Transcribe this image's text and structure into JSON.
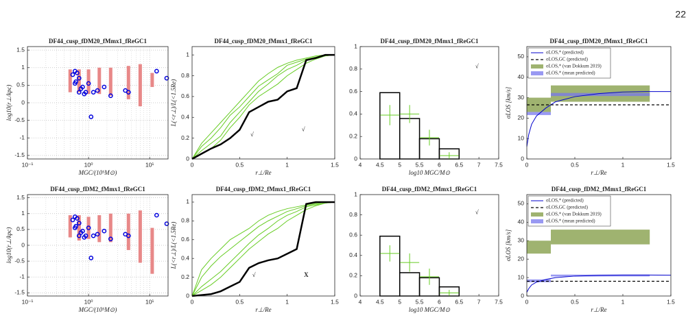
{
  "page_number": "22",
  "chart_data": [
    {
      "type": "scatter",
      "title": "DF44_cusp_fDM20_fMmx1_fReGC1",
      "xlabel": "MGC/(10⁵M⊙)",
      "ylabel": "log10(r⊥/kpc)",
      "xlog": true,
      "grid": true,
      "xlim": [
        0.1,
        20
      ],
      "ylim": [
        -1.6,
        1.6
      ],
      "xticks": [
        {
          "value": 0.1,
          "label": "10⁻¹"
        },
        {
          "value": 1,
          "label": "10⁰"
        },
        {
          "value": 10,
          "label": "10¹"
        }
      ],
      "yticks": [
        -1.5,
        -1,
        -0.5,
        0,
        0.5,
        1,
        1.5
      ],
      "ranges": {
        "color": "#e88888",
        "x": [
          0.5,
          0.7,
          1.0,
          1.5,
          2.3,
          4.5,
          7,
          11
        ],
        "low": [
          0.3,
          0.3,
          0.25,
          0.25,
          0.2,
          0.1,
          -0.1,
          0.45
        ],
        "high": [
          0.95,
          0.95,
          0.95,
          1.0,
          1.0,
          1.05,
          1.1,
          0.85
        ]
      },
      "points": {
        "color": "#0000dd",
        "x": [
          0.55,
          0.6,
          0.65,
          0.6,
          0.62,
          0.7,
          0.7,
          0.75,
          0.8,
          0.85,
          0.9,
          1.0,
          1.1,
          1.2,
          1.4,
          1.8,
          2.3,
          4.0,
          4.5,
          13,
          19
        ],
        "y": [
          0.8,
          0.9,
          0.85,
          0.55,
          0.6,
          0.7,
          0.3,
          0.4,
          0.45,
          0.25,
          0.3,
          0.55,
          -0.4,
          0.3,
          0.35,
          0.45,
          0.2,
          0.35,
          0.3,
          0.9,
          0.7
        ]
      }
    },
    {
      "type": "line",
      "title": "DF44_cusp_fDM20_fMmx1_fReGC1",
      "xlabel": "r⊥/Re",
      "ylabel": "L(<r⊥)/L(<1.5Re)",
      "xlim": [
        0,
        1.5
      ],
      "ylim": [
        0,
        1.08
      ],
      "xticks": [
        0,
        0.5,
        1,
        1.5
      ],
      "yticks": [
        0,
        0.2,
        0.4,
        0.6,
        0.8,
        1
      ],
      "x": [
        0,
        0.1,
        0.2,
        0.3,
        0.4,
        0.5,
        0.6,
        0.7,
        0.8,
        0.9,
        1.0,
        1.1,
        1.2,
        1.3,
        1.4,
        1.5
      ],
      "series": [
        {
          "color": "#66cc22",
          "width": 1,
          "values": [
            0,
            0.12,
            0.2,
            0.3,
            0.42,
            0.5,
            0.6,
            0.7,
            0.76,
            0.82,
            0.9,
            0.93,
            0.96,
            0.98,
            1,
            1
          ]
        },
        {
          "color": "#66cc22",
          "width": 1,
          "values": [
            0,
            0.05,
            0.1,
            0.18,
            0.3,
            0.4,
            0.52,
            0.6,
            0.66,
            0.72,
            0.8,
            0.86,
            0.92,
            0.96,
            0.99,
            1
          ]
        },
        {
          "color": "#66cc22",
          "width": 1,
          "values": [
            0,
            0.08,
            0.15,
            0.22,
            0.35,
            0.45,
            0.55,
            0.65,
            0.72,
            0.8,
            0.86,
            0.9,
            0.95,
            0.97,
            0.99,
            1
          ]
        },
        {
          "color": "#66cc22",
          "width": 1,
          "values": [
            0,
            0.15,
            0.25,
            0.35,
            0.45,
            0.55,
            0.65,
            0.75,
            0.82,
            0.88,
            0.92,
            0.95,
            0.97,
            0.99,
            1,
            1
          ]
        },
        {
          "color": "#000000",
          "width": 2.5,
          "values": [
            0,
            0.05,
            0.1,
            0.14,
            0.2,
            0.28,
            0.45,
            0.5,
            0.55,
            0.57,
            0.65,
            0.68,
            0.95,
            0.97,
            1.0,
            1.0
          ]
        }
      ],
      "annotations": [
        {
          "text": "√",
          "x": 0.63,
          "y": 0.23,
          "color": "#2222cc"
        },
        {
          "text": "√",
          "x": 1.17,
          "y": 0.28,
          "color": "#2222cc"
        }
      ]
    },
    {
      "type": "histogram",
      "title": "DF44_cusp_fDM20_fMmx1_fReGC1",
      "xlabel": "log10 MGC/M⊙",
      "xlim": [
        4,
        7.5
      ],
      "ylim": [
        0,
        1
      ],
      "xticks": [
        4,
        4.5,
        5,
        5.5,
        6,
        6.5,
        7,
        7.5
      ],
      "yticks": [
        0,
        0.2,
        0.4,
        0.6,
        0.8,
        1
      ],
      "bins": [
        4.5,
        5,
        5.5,
        6,
        6.5
      ],
      "counts": [
        0.59,
        0.36,
        0.18,
        0.09
      ],
      "color": "#000000",
      "points": {
        "color": "#66cc22",
        "x": [
          4.75,
          5.25,
          5.75,
          6.25
        ],
        "y": [
          0.39,
          0.4,
          0.19,
          0.03
        ],
        "err": [
          0.09,
          0.08,
          0.07,
          0.03
        ]
      },
      "annotations": [
        {
          "text": "√",
          "x": 6.95,
          "y": 0.82,
          "color": "#2222cc"
        }
      ]
    },
    {
      "type": "line",
      "title": "DF44_cusp_fDM20_fMmx1_fReGC1",
      "xlabel": "r⊥/Re",
      "ylabel": "σLOS [km/s]",
      "xlim": [
        0,
        1.5
      ],
      "ylim": [
        0,
        55
      ],
      "xticks": [
        0,
        0.5,
        1,
        1.5
      ],
      "yticks": [
        0,
        10,
        20,
        30,
        40,
        50
      ],
      "bands": [
        {
          "name": "σLOS,* (van Dokkum 2019)",
          "color": "#7f9a40",
          "opacity": 0.75,
          "x0": [
            0,
            0.25
          ],
          "x1": [
            0.25,
            1.28
          ],
          "low": [
            23,
            28
          ],
          "high": [
            30,
            36
          ]
        },
        {
          "name": "σLOS,* (mean predicted)",
          "color": "#7777ee",
          "opacity": 0.75,
          "x0": [
            0,
            0.25
          ],
          "x1": [
            0.25,
            1.28
          ],
          "low": [
            21.5,
            30.8
          ],
          "high": [
            23,
            32.3
          ]
        }
      ],
      "x": [
        0,
        0.02,
        0.05,
        0.1,
        0.2,
        0.3,
        0.5,
        0.75,
        1,
        1.25,
        1.5
      ],
      "series": [
        {
          "name": "σLOS,* (predicted)",
          "color": "#0000cc",
          "width": 1,
          "values": [
            6,
            12,
            17,
            21,
            25,
            28,
            30.5,
            32,
            32.8,
            33,
            33
          ]
        },
        {
          "name": "σLOS,GC (predicted)",
          "color": "#000000",
          "width": 1.3,
          "dash": true,
          "values": [
            26.5,
            26.5,
            26.5,
            26.5,
            26.5,
            26.5,
            26.5,
            26.5,
            26.5,
            26.5,
            26.5
          ]
        }
      ]
    },
    {
      "type": "scatter",
      "title": "DF44_cusp_fDM2_fMmx1_fReGC1",
      "xlabel": "MGC/(10⁵M⊙)",
      "ylabel": "log10(r⊥/kpc)",
      "xlog": true,
      "grid": true,
      "xlim": [
        0.1,
        20
      ],
      "ylim": [
        -1.6,
        1.6
      ],
      "xticks": [
        {
          "value": 0.1,
          "label": "10⁻¹"
        },
        {
          "value": 1,
          "label": "10⁰"
        },
        {
          "value": 10,
          "label": "10¹"
        }
      ],
      "yticks": [
        -1.5,
        -1,
        -0.5,
        0,
        0.5,
        1,
        1.5
      ],
      "ranges": {
        "color": "#e88888",
        "x": [
          0.5,
          0.7,
          1.0,
          1.5,
          2.3,
          4.5,
          7,
          11
        ],
        "low": [
          0.25,
          0.15,
          0.2,
          0.1,
          0.1,
          -0.15,
          -0.55,
          -0.9
        ],
        "high": [
          0.95,
          0.95,
          0.9,
          0.95,
          1.0,
          1.0,
          1.1,
          0.55
        ]
      },
      "points": {
        "color": "#0000dd",
        "x": [
          0.55,
          0.6,
          0.65,
          0.6,
          0.62,
          0.7,
          0.7,
          0.75,
          0.8,
          0.85,
          0.9,
          1.0,
          1.1,
          1.2,
          1.4,
          1.8,
          2.3,
          4.0,
          4.5,
          13,
          19
        ],
        "y": [
          0.8,
          0.9,
          0.85,
          0.55,
          0.6,
          0.7,
          0.3,
          0.4,
          0.45,
          0.25,
          0.3,
          0.55,
          -0.4,
          0.3,
          0.35,
          0.45,
          0.2,
          0.35,
          0.3,
          0.95,
          0.68
        ]
      }
    },
    {
      "type": "line",
      "title": "DF44_cusp_fDM2_fMmx1_fReGC1",
      "xlabel": "r⊥/Re",
      "ylabel": "L(<r⊥)/L(<1.5Re)",
      "xlim": [
        0,
        1.5
      ],
      "ylim": [
        0,
        1.08
      ],
      "xticks": [
        0,
        0.5,
        1,
        1.5
      ],
      "yticks": [
        0,
        0.2,
        0.4,
        0.6,
        0.8,
        1
      ],
      "x": [
        0,
        0.1,
        0.2,
        0.3,
        0.4,
        0.5,
        0.6,
        0.7,
        0.8,
        0.9,
        1.0,
        1.1,
        1.2,
        1.3,
        1.4,
        1.5
      ],
      "series": [
        {
          "color": "#66cc22",
          "width": 1,
          "values": [
            0,
            0.2,
            0.32,
            0.42,
            0.5,
            0.58,
            0.66,
            0.74,
            0.8,
            0.85,
            0.9,
            0.93,
            0.96,
            0.98,
            1,
            1
          ]
        },
        {
          "color": "#66cc22",
          "width": 1,
          "values": [
            0,
            0.06,
            0.12,
            0.2,
            0.3,
            0.4,
            0.5,
            0.58,
            0.66,
            0.72,
            0.8,
            0.86,
            0.92,
            0.96,
            0.99,
            1
          ]
        },
        {
          "color": "#66cc22",
          "width": 1,
          "values": [
            0,
            0.1,
            0.18,
            0.26,
            0.36,
            0.46,
            0.56,
            0.65,
            0.72,
            0.8,
            0.86,
            0.9,
            0.95,
            0.97,
            0.99,
            1
          ]
        },
        {
          "color": "#66cc22",
          "width": 1,
          "values": [
            0,
            0.28,
            0.4,
            0.5,
            0.6,
            0.66,
            0.72,
            0.8,
            0.86,
            0.9,
            0.93,
            0.95,
            0.97,
            0.99,
            1,
            1
          ]
        },
        {
          "color": "#000000",
          "width": 2.5,
          "values": [
            0,
            0.01,
            0.02,
            0.05,
            0.1,
            0.15,
            0.3,
            0.35,
            0.38,
            0.4,
            0.45,
            0.5,
            0.98,
            1.0,
            1.0,
            1.0
          ]
        }
      ],
      "annotations": [
        {
          "text": "√",
          "x": 0.65,
          "y": 0.22,
          "color": "#2222cc"
        },
        {
          "text": "X",
          "x": 1.2,
          "y": 0.22,
          "color": "#dd2222"
        }
      ]
    },
    {
      "type": "histogram",
      "title": "DF44_cusp_fDM2_fMmx1_fReGC1",
      "xlabel": "log10 MGC/M⊙",
      "xlim": [
        4,
        7.5
      ],
      "ylim": [
        0,
        1
      ],
      "xticks": [
        4,
        4.5,
        5,
        5.5,
        6,
        6.5,
        7,
        7.5
      ],
      "yticks": [
        0,
        0.2,
        0.4,
        0.6,
        0.8,
        1
      ],
      "bins": [
        4.5,
        5,
        5.5,
        6,
        6.5
      ],
      "counts": [
        0.59,
        0.23,
        0.18,
        0.09
      ],
      "color": "#000000",
      "points": {
        "color": "#66cc22",
        "x": [
          4.75,
          5.25,
          5.75,
          6.25
        ],
        "y": [
          0.42,
          0.33,
          0.19,
          0.03
        ],
        "err": [
          0.08,
          0.09,
          0.08,
          0.03
        ]
      },
      "annotations": [
        {
          "text": "√",
          "x": 6.95,
          "y": 0.82,
          "color": "#2222cc"
        }
      ]
    },
    {
      "type": "line",
      "title": "DF44_cusp_fDM2_fMmx1_fReGC1",
      "xlabel": "r⊥/Re",
      "ylabel": "σLOS [km/s]",
      "xlim": [
        0,
        1.5
      ],
      "ylim": [
        0,
        55
      ],
      "xticks": [
        0,
        0.5,
        1,
        1.5
      ],
      "yticks": [
        0,
        10,
        20,
        30,
        40,
        50
      ],
      "bands": [
        {
          "name": "σLOS,* (van Dokkum 2019)",
          "color": "#7f9a40",
          "opacity": 0.75,
          "x0": [
            0,
            0.25
          ],
          "x1": [
            0.25,
            1.28
          ],
          "low": [
            23,
            28
          ],
          "high": [
            30,
            36
          ]
        },
        {
          "name": "σLOS,* (mean predicted)",
          "color": "#7777ee",
          "opacity": 0.75,
          "x0": [
            0,
            0.25
          ],
          "x1": [
            0.25,
            1.28
          ],
          "low": [
            7.5,
            10.6
          ],
          "high": [
            9,
            11.6
          ]
        }
      ],
      "x": [
        0,
        0.02,
        0.05,
        0.1,
        0.2,
        0.3,
        0.5,
        0.75,
        1,
        1.25,
        1.5
      ],
      "series": [
        {
          "name": "σLOS,* (predicted)",
          "color": "#0000cc",
          "width": 1,
          "values": [
            2,
            4,
            6,
            7.5,
            9,
            10,
            10.8,
            11.2,
            11.4,
            11.4,
            11.3
          ]
        },
        {
          "name": "σLOS,GC (predicted)",
          "color": "#000000",
          "width": 1.3,
          "dash": true,
          "values": [
            8,
            8,
            8,
            8,
            8,
            8,
            8,
            8,
            8,
            8,
            8
          ]
        }
      ]
    }
  ]
}
